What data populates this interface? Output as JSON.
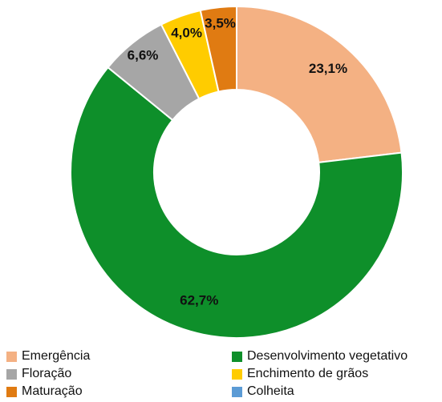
{
  "chart_data": {
    "type": "pie",
    "variant": "donut",
    "categories": [
      "Emergência",
      "Desenvolvimento vegetativo",
      "Floração",
      "Enchimento de grãos",
      "Maturação",
      "Colheita"
    ],
    "values": [
      23.1,
      62.7,
      6.6,
      4.0,
      3.5,
      0.0
    ],
    "value_labels": [
      "23,1%",
      "62,7%",
      "6,6%",
      "4,0%",
      "3,5%",
      ""
    ],
    "colors": [
      "#F4B183",
      "#0E8F2A",
      "#A6A6A6",
      "#FFCC00",
      "#E07B12",
      "#5B9BD5"
    ],
    "title": "",
    "legend_position": "bottom"
  }
}
